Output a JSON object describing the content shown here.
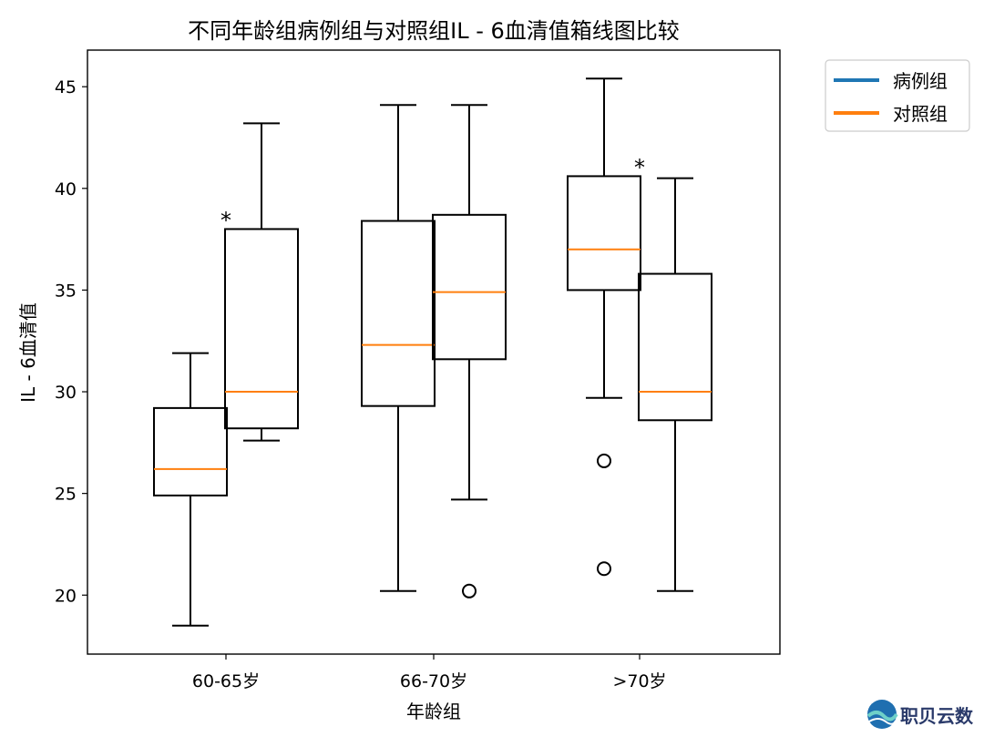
{
  "chart_data": {
    "type": "box",
    "title": "不同年龄组病例组与对照组IL - 6血清值箱线图比较",
    "xlabel": "年龄组",
    "ylabel": "IL - 6血清值",
    "categories": [
      "60-65岁",
      "66-70岁",
      ">70岁"
    ],
    "ylim": [
      17.1,
      46.8
    ],
    "yticks": [
      20,
      25,
      30,
      35,
      40,
      45
    ],
    "legend_position": "outside-top-right",
    "series": [
      {
        "name": "病例组",
        "color": "#1f77b4",
        "boxes": [
          {
            "min": 18.5,
            "q1": 24.9,
            "median": 26.2,
            "q3": 29.2,
            "max": 31.9,
            "outliers": []
          },
          {
            "min": 20.2,
            "q1": 29.3,
            "median": 32.3,
            "q3": 38.4,
            "max": 44.1,
            "outliers": []
          },
          {
            "min": 29.7,
            "q1": 35.0,
            "median": 37.0,
            "q3": 40.6,
            "max": 45.4,
            "outliers": [
              26.6,
              21.3
            ]
          }
        ]
      },
      {
        "name": "对照组",
        "color": "#ff7f0e",
        "boxes": [
          {
            "min": 27.6,
            "q1": 28.2,
            "median": 30.0,
            "q3": 38.0,
            "max": 43.2,
            "outliers": []
          },
          {
            "min": 24.7,
            "q1": 31.6,
            "median": 34.9,
            "q3": 38.7,
            "max": 44.1,
            "outliers": [
              20.2
            ]
          },
          {
            "min": 20.2,
            "q1": 28.6,
            "median": 30.0,
            "q3": 35.8,
            "max": 40.5,
            "outliers": []
          }
        ]
      }
    ],
    "annotations": [
      {
        "text": "*",
        "category_index": 0,
        "y": 38.6
      },
      {
        "text": "*",
        "category_index": 2,
        "y": 41.2
      }
    ],
    "box_edge_color": "#000000",
    "median_color": "#ff7f0e"
  },
  "watermark": {
    "text": "职贝云数",
    "logo_icon": "globe-wave-icon"
  }
}
